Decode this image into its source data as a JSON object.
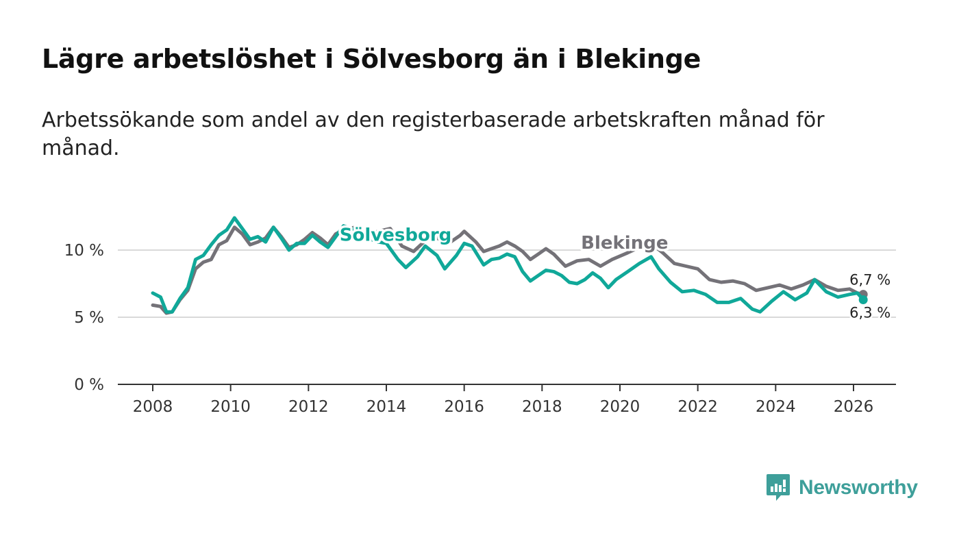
{
  "title": "Lägre arbetslöshet i Sölvesborg än i Blekinge",
  "subtitle": "Arbetssökande som andel av den registerbaserade arbetskraften månad för månad.",
  "brand": {
    "name": "Newsworthy"
  },
  "colors": {
    "solvesborg": "#10a899",
    "blekinge": "#747278",
    "grid": "#d9d9d9",
    "axis": "#333333",
    "brand": "#3e9f9a"
  },
  "chart_data": {
    "type": "line",
    "title": "Lägre arbetslöshet i Sölvesborg än i Blekinge",
    "xlabel": "",
    "ylabel": "",
    "xlim": [
      2007.1,
      2027.0
    ],
    "ylim": [
      0,
      13.5
    ],
    "grid": true,
    "x_ticks": [
      2008,
      2010,
      2012,
      2014,
      2016,
      2018,
      2020,
      2022,
      2024,
      2026
    ],
    "x_tick_labels": [
      "2008",
      "2010",
      "2012",
      "2014",
      "2016",
      "2018",
      "2020",
      "2022",
      "2024",
      "2026"
    ],
    "y_ticks": [
      0,
      5,
      10
    ],
    "y_tick_labels": [
      "0 %",
      "5 %",
      "10 %"
    ],
    "series": [
      {
        "name": "Blekinge",
        "label_at": [
          2019.0,
          10.1
        ],
        "end_label": "6,7 %",
        "points": [
          [
            2008.0,
            5.9
          ],
          [
            2008.2,
            5.8
          ],
          [
            2008.35,
            5.3
          ],
          [
            2008.5,
            5.4
          ],
          [
            2008.7,
            6.3
          ],
          [
            2008.9,
            7.0
          ],
          [
            2009.1,
            8.6
          ],
          [
            2009.3,
            9.1
          ],
          [
            2009.5,
            9.3
          ],
          [
            2009.7,
            10.4
          ],
          [
            2009.9,
            10.7
          ],
          [
            2010.1,
            11.7
          ],
          [
            2010.3,
            11.2
          ],
          [
            2010.5,
            10.4
          ],
          [
            2010.7,
            10.6
          ],
          [
            2010.9,
            10.9
          ],
          [
            2011.1,
            11.7
          ],
          [
            2011.3,
            11.0
          ],
          [
            2011.5,
            10.2
          ],
          [
            2011.7,
            10.4
          ],
          [
            2011.9,
            10.8
          ],
          [
            2012.1,
            11.3
          ],
          [
            2012.3,
            10.9
          ],
          [
            2012.5,
            10.4
          ],
          [
            2012.7,
            11.2
          ],
          [
            2012.9,
            11.5
          ],
          [
            2013.2,
            11.7
          ],
          [
            2013.5,
            11.2
          ],
          [
            2013.8,
            11.4
          ],
          [
            2014.1,
            11.6
          ],
          [
            2014.4,
            10.3
          ],
          [
            2014.7,
            9.9
          ],
          [
            2015.0,
            10.7
          ],
          [
            2015.3,
            10.9
          ],
          [
            2015.6,
            10.5
          ],
          [
            2015.9,
            11.1
          ],
          [
            2016.0,
            11.4
          ],
          [
            2016.3,
            10.6
          ],
          [
            2016.5,
            9.9
          ],
          [
            2016.7,
            10.1
          ],
          [
            2016.9,
            10.3
          ],
          [
            2017.1,
            10.6
          ],
          [
            2017.3,
            10.3
          ],
          [
            2017.5,
            9.9
          ],
          [
            2017.7,
            9.3
          ],
          [
            2017.9,
            9.7
          ],
          [
            2018.1,
            10.1
          ],
          [
            2018.3,
            9.7
          ],
          [
            2018.6,
            8.8
          ],
          [
            2018.9,
            9.2
          ],
          [
            2019.2,
            9.3
          ],
          [
            2019.5,
            8.8
          ],
          [
            2019.8,
            9.3
          ],
          [
            2020.2,
            9.8
          ],
          [
            2020.5,
            10.2
          ],
          [
            2020.8,
            10.5
          ],
          [
            2021.1,
            9.8
          ],
          [
            2021.4,
            9.0
          ],
          [
            2021.7,
            8.8
          ],
          [
            2022.0,
            8.6
          ],
          [
            2022.3,
            7.8
          ],
          [
            2022.6,
            7.6
          ],
          [
            2022.9,
            7.7
          ],
          [
            2023.2,
            7.5
          ],
          [
            2023.5,
            7.0
          ],
          [
            2023.8,
            7.2
          ],
          [
            2024.1,
            7.4
          ],
          [
            2024.4,
            7.1
          ],
          [
            2024.7,
            7.4
          ],
          [
            2025.0,
            7.8
          ],
          [
            2025.3,
            7.3
          ],
          [
            2025.6,
            7.0
          ],
          [
            2025.9,
            7.1
          ],
          [
            2026.1,
            6.8
          ],
          [
            2026.25,
            6.7
          ]
        ]
      },
      {
        "name": "Sölvesborg",
        "label_at": [
          2012.8,
          10.7
        ],
        "end_label": "6,3 %",
        "points": [
          [
            2008.0,
            6.8
          ],
          [
            2008.2,
            6.5
          ],
          [
            2008.35,
            5.4
          ],
          [
            2008.5,
            5.4
          ],
          [
            2008.7,
            6.4
          ],
          [
            2008.9,
            7.2
          ],
          [
            2009.1,
            9.3
          ],
          [
            2009.3,
            9.6
          ],
          [
            2009.5,
            10.4
          ],
          [
            2009.7,
            11.1
          ],
          [
            2009.9,
            11.5
          ],
          [
            2010.1,
            12.4
          ],
          [
            2010.3,
            11.6
          ],
          [
            2010.5,
            10.8
          ],
          [
            2010.7,
            11.0
          ],
          [
            2010.9,
            10.6
          ],
          [
            2011.1,
            11.7
          ],
          [
            2011.3,
            10.9
          ],
          [
            2011.5,
            10.0
          ],
          [
            2011.7,
            10.5
          ],
          [
            2011.9,
            10.5
          ],
          [
            2012.1,
            11.1
          ],
          [
            2012.3,
            10.6
          ],
          [
            2012.5,
            10.2
          ],
          [
            2012.7,
            11.0
          ],
          [
            2012.9,
            11.8
          ],
          [
            2013.2,
            11.5
          ],
          [
            2013.5,
            10.9
          ],
          [
            2013.8,
            10.6
          ],
          [
            2014.0,
            10.5
          ],
          [
            2014.3,
            9.3
          ],
          [
            2014.5,
            8.7
          ],
          [
            2014.8,
            9.5
          ],
          [
            2015.0,
            10.3
          ],
          [
            2015.3,
            9.6
          ],
          [
            2015.5,
            8.6
          ],
          [
            2015.8,
            9.6
          ],
          [
            2016.0,
            10.5
          ],
          [
            2016.2,
            10.3
          ],
          [
            2016.5,
            8.9
          ],
          [
            2016.7,
            9.3
          ],
          [
            2016.9,
            9.4
          ],
          [
            2017.1,
            9.7
          ],
          [
            2017.3,
            9.5
          ],
          [
            2017.5,
            8.4
          ],
          [
            2017.7,
            7.7
          ],
          [
            2017.9,
            8.1
          ],
          [
            2018.1,
            8.5
          ],
          [
            2018.3,
            8.4
          ],
          [
            2018.5,
            8.1
          ],
          [
            2018.7,
            7.6
          ],
          [
            2018.9,
            7.5
          ],
          [
            2019.1,
            7.8
          ],
          [
            2019.3,
            8.3
          ],
          [
            2019.5,
            7.9
          ],
          [
            2019.7,
            7.2
          ],
          [
            2019.9,
            7.8
          ],
          [
            2020.2,
            8.4
          ],
          [
            2020.5,
            9.0
          ],
          [
            2020.8,
            9.5
          ],
          [
            2021.0,
            8.6
          ],
          [
            2021.3,
            7.6
          ],
          [
            2021.6,
            6.9
          ],
          [
            2021.9,
            7.0
          ],
          [
            2022.2,
            6.7
          ],
          [
            2022.5,
            6.1
          ],
          [
            2022.8,
            6.1
          ],
          [
            2023.1,
            6.4
          ],
          [
            2023.4,
            5.6
          ],
          [
            2023.6,
            5.4
          ],
          [
            2023.9,
            6.2
          ],
          [
            2024.2,
            6.9
          ],
          [
            2024.5,
            6.3
          ],
          [
            2024.8,
            6.8
          ],
          [
            2025.0,
            7.8
          ],
          [
            2025.3,
            6.9
          ],
          [
            2025.6,
            6.5
          ],
          [
            2025.9,
            6.7
          ],
          [
            2026.1,
            6.8
          ],
          [
            2026.25,
            6.3
          ]
        ]
      }
    ]
  }
}
